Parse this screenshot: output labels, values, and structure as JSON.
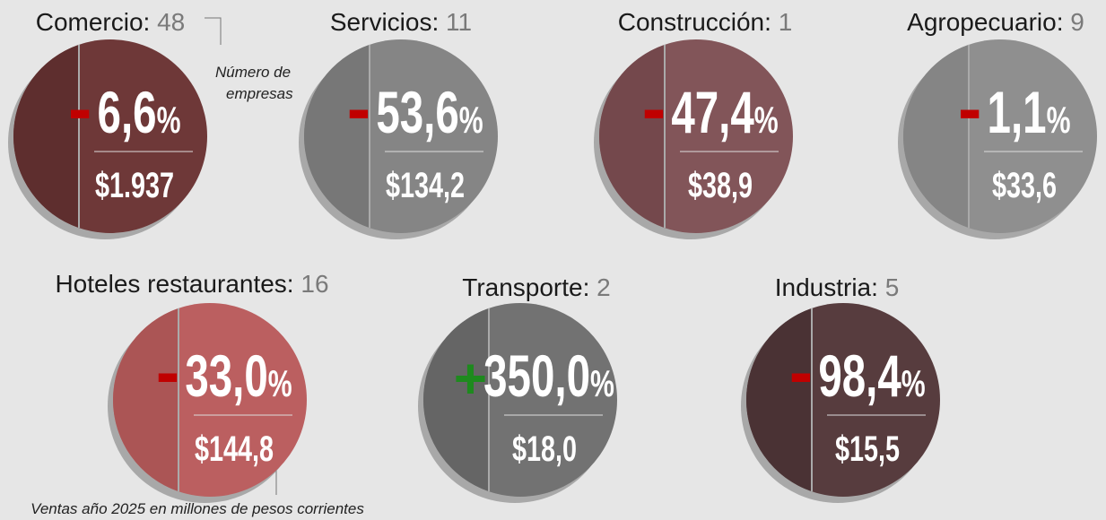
{
  "sectors": [
    {
      "name": "Comercio:",
      "count": "48",
      "sign": "-",
      "change": "6,6",
      "unit": "%",
      "sales": "$1.937"
    },
    {
      "name": "Servicios:",
      "count": "11",
      "sign": "-",
      "change": "53,6",
      "unit": "%",
      "sales": "$134,2"
    },
    {
      "name": "Construcción:",
      "count": "1",
      "sign": "-",
      "change": "47,4",
      "unit": "%",
      "sales": "$38,9"
    },
    {
      "name": "Agropecuario:",
      "count": "9",
      "sign": "-",
      "change": "1,1",
      "unit": "%",
      "sales": "$33,6"
    },
    {
      "name": "Hoteles restaurantes:",
      "count": "16",
      "sign": "-",
      "change": "33,0",
      "unit": "%",
      "sales": "$144,8"
    },
    {
      "name": "Transporte:",
      "count": "2",
      "sign": "+",
      "change": "350,0",
      "unit": "%",
      "sales": "$18,0"
    },
    {
      "name": "Industria:",
      "count": "5",
      "sign": "-",
      "change": "98,4",
      "unit": "%",
      "sales": "$15,5"
    }
  ],
  "annotations": {
    "count_note": [
      "Número de",
      "empresas"
    ],
    "sales_note": "Ventas año 2025 en millones de pesos corrientes"
  }
}
